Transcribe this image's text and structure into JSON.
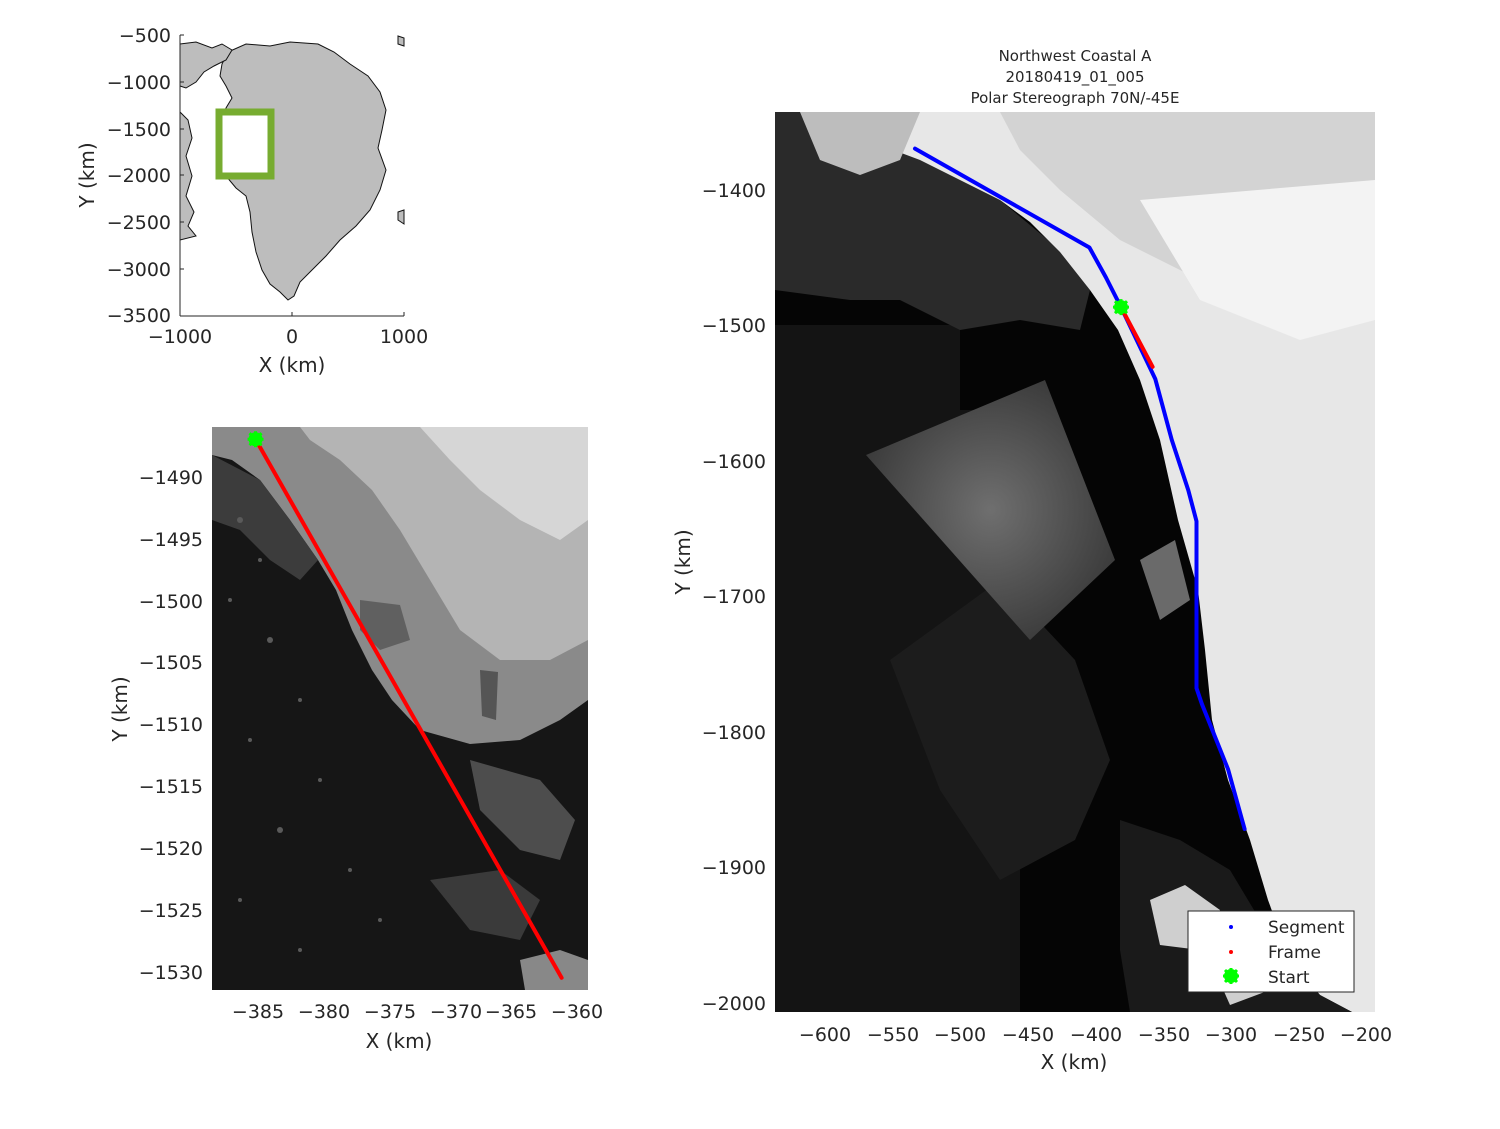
{
  "colors": {
    "segment": "#0000ff",
    "frame": "#ff0000",
    "start": "#00ff00",
    "bbox": "#77ac30",
    "land": "#bdbdbd"
  },
  "overview": {
    "xlabel": "X (km)",
    "ylabel": "Y (km)",
    "xticks": [
      "−1000",
      "0",
      "1000"
    ],
    "yticks": [
      "−500",
      "−1000",
      "−1500",
      "−2000",
      "−2500",
      "−3000",
      "−3500"
    ]
  },
  "detail": {
    "xlabel": "X (km)",
    "ylabel": "Y (km)",
    "xticks": [
      "−385",
      "−380",
      "−375",
      "−370",
      "−365",
      "−360"
    ],
    "yticks": [
      "−1490",
      "−1495",
      "−1500",
      "−1505",
      "−1510",
      "−1515",
      "−1520",
      "−1525",
      "−1530"
    ]
  },
  "main": {
    "title_line1": "Northwest Coastal A",
    "title_line2": "20180419_01_005",
    "title_line3": "Polar Stereograph 70N/-45E",
    "xlabel": "X (km)",
    "ylabel": "Y (km)",
    "xticks": [
      "−600",
      "−550",
      "−500",
      "−450",
      "−400",
      "−350",
      "−300",
      "−250",
      "−200"
    ],
    "yticks": [
      "−1400",
      "−1500",
      "−1600",
      "−1700",
      "−1800",
      "−1900",
      "−2000"
    ],
    "legend": {
      "segment": "Segment",
      "frame": "Frame",
      "start": "Start"
    }
  },
  "chart_data": [
    {
      "type": "scatter",
      "panel": "overview",
      "xlabel": "X (km)",
      "ylabel": "Y (km)",
      "xlim": [
        -1000,
        1000
      ],
      "ylim": [
        -3500,
        -500
      ],
      "bbox_km": {
        "x": [
          -640,
          -170
        ],
        "y": [
          -2000,
          -1380
        ]
      }
    },
    {
      "type": "line",
      "panel": "detail",
      "xlabel": "X (km)",
      "ylabel": "Y (km)",
      "xlim": [
        -388.5,
        -360
      ],
      "ylim": [
        -1531.5,
        -1485.5
      ],
      "series": [
        {
          "name": "Frame",
          "x": [
            -385.2,
            -362
          ],
          "y": [
            -1486.5,
            -1530.5
          ]
        },
        {
          "name": "Start",
          "x": [
            -385.2
          ],
          "y": [
            -1486.5
          ]
        }
      ]
    },
    {
      "type": "line",
      "panel": "main",
      "title": "Northwest Coastal A 20180419_01_005 Polar Stereograph 70N/-45E",
      "xlabel": "X (km)",
      "ylabel": "Y (km)",
      "xlim": [
        -637,
        -200
      ],
      "ylim": [
        -2007,
        -1343
      ],
      "legend_position": "bottom-right",
      "series": [
        {
          "name": "Segment",
          "x": [
            -535,
            -408,
            -396,
            -385,
            -360,
            -348,
            -336,
            -330,
            -330,
            -326,
            -307,
            -295
          ],
          "y": [
            -1370,
            -1443,
            -1465,
            -1487,
            -1540,
            -1585,
            -1622,
            -1645,
            -1768,
            -1780,
            -1828,
            -1872
          ]
        },
        {
          "name": "Frame",
          "x": [
            -385,
            -362
          ],
          "y": [
            -1487,
            -1531
          ]
        },
        {
          "name": "Start",
          "x": [
            -385
          ],
          "y": [
            -1487
          ]
        }
      ]
    }
  ]
}
